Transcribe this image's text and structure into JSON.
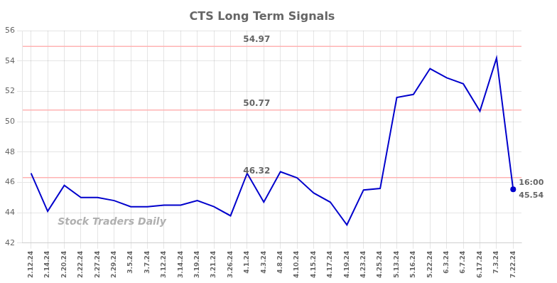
{
  "chart_data": {
    "type": "line",
    "title": "CTS Long Term Signals",
    "categories": [
      "2.12.24",
      "2.14.24",
      "2.20.24",
      "2.22.24",
      "2.27.24",
      "2.29.24",
      "3.5.24",
      "3.7.24",
      "3.12.24",
      "3.14.24",
      "3.19.24",
      "3.21.24",
      "3.26.24",
      "4.1.24",
      "4.3.24",
      "4.8.24",
      "4.10.24",
      "4.15.24",
      "4.17.24",
      "4.19.24",
      "4.23.24",
      "4.25.24",
      "5.13.24",
      "5.16.24",
      "5.22.24",
      "6.3.24",
      "6.7.24",
      "6.17.24",
      "7.3.24",
      "7.22.24"
    ],
    "values": [
      46.6,
      44.1,
      45.8,
      45.0,
      45.0,
      44.8,
      44.4,
      44.4,
      44.5,
      44.5,
      44.8,
      44.4,
      43.8,
      46.6,
      44.7,
      46.7,
      46.3,
      45.3,
      44.7,
      43.2,
      45.5,
      45.6,
      51.6,
      51.8,
      53.5,
      52.9,
      52.5,
      50.7,
      54.2,
      45.54
    ],
    "color": "#0000cc",
    "ylim": [
      42,
      56
    ],
    "yticks": [
      42,
      44,
      46,
      48,
      50,
      52,
      54,
      56
    ],
    "grid": true,
    "annotations": [
      {
        "type": "hline",
        "y": 54.97,
        "text": "54.97",
        "color": "#ffb3b3"
      },
      {
        "type": "hline",
        "y": 50.77,
        "text": "50.77",
        "color": "#ffb3b3"
      },
      {
        "type": "hline",
        "y": 46.32,
        "text": "46.32",
        "color": "#ffb3b3"
      },
      {
        "type": "point",
        "x": "7.22.24",
        "y": 45.54,
        "labels": [
          "16:00",
          "45.54"
        ]
      },
      {
        "type": "text",
        "text": "Stock Traders Daily",
        "color": "#b0b0b0"
      }
    ]
  }
}
